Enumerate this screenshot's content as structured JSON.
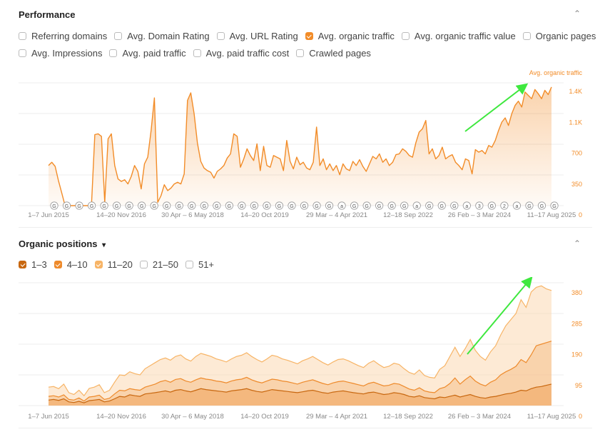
{
  "performance": {
    "title": "Performance",
    "collapse_icon": "chevron-up-icon",
    "checkboxes_row1": [
      {
        "label": "Referring domains",
        "checked": false
      },
      {
        "label": "Avg. Domain Rating",
        "checked": false
      },
      {
        "label": "Avg. URL Rating",
        "checked": false
      },
      {
        "label": "Avg. organic traffic",
        "checked": true
      },
      {
        "label": "Avg. organic traffic value",
        "checked": false
      },
      {
        "label": "Organic pages",
        "checked": false
      }
    ],
    "checkboxes_row2": [
      {
        "label": "Avg. Impressions",
        "checked": false
      },
      {
        "label": "Avg. paid traffic",
        "checked": false
      },
      {
        "label": "Avg. paid traffic cost",
        "checked": false
      },
      {
        "label": "Crawled pages",
        "checked": false
      }
    ]
  },
  "positions": {
    "title": "Organic positions",
    "title_icon": "chevron-down-icon",
    "collapse_icon": "chevron-up-icon",
    "checkboxes": [
      {
        "label": "1–3",
        "checked": true,
        "color": "#c8670f"
      },
      {
        "label": "4–10",
        "checked": true,
        "color": "#ee8a2b"
      },
      {
        "label": "11–20",
        "checked": true,
        "color": "#f7b466"
      },
      {
        "label": "21–50",
        "checked": false
      },
      {
        "label": "51+",
        "checked": false
      }
    ]
  },
  "colors": {
    "accent": "#f28c28",
    "arrow": "#3ee83e",
    "muted": "#888888"
  },
  "x_ticks": [
    "1–7 Jun 2015",
    "14–20 Nov 2016",
    "30 Apr – 6 May 2018",
    "14–20 Oct 2019",
    "29 Mar – 4 Apr 2021",
    "12–18 Sep 2022",
    "26 Feb – 3 Mar 2024",
    "11–17 Aug 2025"
  ],
  "chart_data": [
    {
      "type": "area",
      "series": [
        {
          "name": "Avg. organic traffic",
          "color": "#f28c28",
          "values": [
            480,
            520,
            470,
            300,
            150,
            0,
            0,
            0,
            0,
            0,
            0,
            0,
            0,
            20,
            850,
            860,
            830,
            40,
            800,
            860,
            480,
            320,
            290,
            310,
            260,
            350,
            480,
            410,
            200,
            500,
            580,
            900,
            1290,
            40,
            120,
            250,
            180,
            210,
            260,
            280,
            260,
            380,
            1260,
            1350,
            1100,
            750,
            530,
            450,
            420,
            400,
            330,
            410,
            440,
            480,
            570,
            620,
            860,
            830,
            460,
            560,
            680,
            600,
            540,
            740,
            420,
            710,
            480,
            460,
            600,
            580,
            560,
            420,
            780,
            530,
            440,
            580,
            490,
            520,
            450,
            430,
            520,
            940,
            480,
            560,
            430,
            500,
            420,
            480,
            370,
            500,
            440,
            420,
            530,
            480,
            550,
            470,
            410,
            500,
            590,
            560,
            620,
            520,
            560,
            480,
            520,
            610,
            620,
            680,
            650,
            600,
            580,
            750,
            880,
            920,
            1020,
            620,
            680,
            560,
            600,
            700,
            560,
            590,
            610,
            520,
            480,
            430,
            560,
            540,
            380,
            670,
            640,
            660,
            620,
            720,
            700,
            780,
            900,
            1000,
            1050,
            960,
            1100,
            1200,
            1250,
            1180,
            1360,
            1320,
            1280,
            1390,
            1340,
            1280,
            1380,
            1330,
            1420
          ]
        }
      ],
      "y_ticks": [
        "0",
        "350",
        "700",
        "1.1K",
        "1.4K"
      ],
      "y_label": "Avg. organic traffic",
      "ylim": [
        0,
        1470
      ],
      "x_ticks": [
        "1–7 Jun 2015",
        "14–20 Nov 2016",
        "30 Apr – 6 May 2018",
        "14–20 Oct 2019",
        "29 Mar – 4 Apr 2021",
        "12–18 Sep 2022",
        "26 Feb – 3 Mar 2024",
        "11–17 Aug 2025"
      ],
      "annotation_markers": [
        "G",
        "G",
        "G",
        "G",
        "G",
        "G",
        "G",
        "G",
        "G",
        "G",
        "(G",
        "G",
        "((G",
        "G",
        "(G",
        "(G",
        "(G",
        "G",
        "(G",
        "G",
        "(G",
        "(G",
        "(G",
        "a",
        "(G",
        "(G",
        "(G",
        "G",
        "G",
        "a",
        "(G",
        "G",
        "(G",
        "a",
        "3",
        "G",
        "2",
        "a",
        "G",
        "G",
        "G"
      ],
      "trend_arrow": true
    },
    {
      "type": "area",
      "stacked": true,
      "series": [
        {
          "name": "1–3",
          "color": "#c8670f",
          "values": [
            18,
            20,
            17,
            22,
            12,
            10,
            14,
            9,
            16,
            18,
            20,
            12,
            15,
            22,
            30,
            28,
            35,
            32,
            30,
            38,
            40,
            42,
            45,
            48,
            44,
            50,
            52,
            48,
            45,
            50,
            55,
            52,
            50,
            48,
            46,
            44,
            48,
            50,
            52,
            55,
            50,
            46,
            44,
            48,
            52,
            50,
            48,
            46,
            44,
            42,
            45,
            48,
            50,
            46,
            42,
            40,
            44,
            46,
            48,
            45,
            42,
            40,
            38,
            42,
            44,
            40,
            36,
            38,
            42,
            40,
            36,
            30,
            28,
            32,
            26,
            24,
            22,
            28,
            26,
            30,
            34,
            28,
            32,
            36,
            30,
            26,
            24,
            28,
            30,
            34,
            38,
            40,
            44,
            50,
            48,
            55,
            60,
            62,
            66,
            70
          ]
        },
        {
          "name": "4–10",
          "color": "#ee8a2b",
          "values": [
            30,
            32,
            28,
            35,
            20,
            18,
            25,
            15,
            28,
            30,
            34,
            20,
            24,
            38,
            50,
            48,
            55,
            52,
            50,
            60,
            65,
            70,
            78,
            82,
            76,
            85,
            88,
            80,
            76,
            84,
            90,
            86,
            84,
            80,
            78,
            74,
            80,
            84,
            86,
            92,
            84,
            78,
            74,
            80,
            86,
            84,
            80,
            78,
            74,
            70,
            76,
            80,
            84,
            78,
            72,
            68,
            74,
            78,
            80,
            76,
            72,
            68,
            64,
            72,
            76,
            70,
            64,
            66,
            72,
            70,
            62,
            54,
            50,
            58,
            48,
            44,
            42,
            55,
            60,
            72,
            90,
            70,
            84,
            96,
            80,
            70,
            64,
            76,
            84,
            100,
            110,
            118,
            128,
            150,
            140,
            165,
            195,
            200,
            205,
            210
          ]
        },
        {
          "name": "11–20",
          "color": "#f7b466",
          "values": [
            60,
            62,
            55,
            70,
            42,
            36,
            50,
            32,
            56,
            60,
            68,
            42,
            50,
            76,
            100,
            98,
            110,
            104,
            100,
            120,
            130,
            140,
            150,
            155,
            148,
            160,
            165,
            152,
            145,
            160,
            170,
            165,
            160,
            152,
            148,
            142,
            152,
            160,
            164,
            172,
            160,
            150,
            142,
            152,
            164,
            160,
            152,
            148,
            142,
            136,
            146,
            152,
            160,
            150,
            140,
            132,
            142,
            150,
            152,
            146,
            138,
            130,
            124,
            138,
            146,
            134,
            124,
            128,
            138,
            134,
            120,
            108,
            102,
            116,
            98,
            92,
            90,
            118,
            130,
            160,
            190,
            160,
            185,
            215,
            180,
            160,
            148,
            175,
            195,
            230,
            260,
            280,
            300,
            345,
            320,
            370,
            385,
            390,
            380,
            375
          ]
        }
      ],
      "y_ticks": [
        "0",
        "95",
        "190",
        "285",
        "380"
      ],
      "ylim": [
        0,
        400
      ],
      "x_ticks": [
        "1–7 Jun 2015",
        "14–20 Nov 2016",
        "30 Apr – 6 May 2018",
        "14–20 Oct 2019",
        "29 Mar – 4 Apr 2021",
        "12–18 Sep 2022",
        "26 Feb – 3 Mar 2024",
        "11–17 Aug 2025"
      ],
      "trend_arrow": true
    }
  ]
}
